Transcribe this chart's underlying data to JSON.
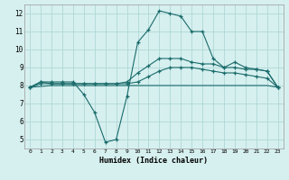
{
  "xlabel": "Humidex (Indice chaleur)",
  "background_color": "#d6f0ef",
  "grid_color": "#aed8d6",
  "line_color": "#1a6b6b",
  "xlim": [
    -0.5,
    23.5
  ],
  "ylim": [
    4.5,
    12.5
  ],
  "xticks": [
    0,
    1,
    2,
    3,
    4,
    5,
    6,
    7,
    8,
    9,
    10,
    11,
    12,
    13,
    14,
    15,
    16,
    17,
    18,
    19,
    20,
    21,
    22,
    23
  ],
  "yticks": [
    5,
    6,
    7,
    8,
    9,
    10,
    11,
    12
  ],
  "lines": [
    {
      "x": [
        0,
        1,
        2,
        3,
        4,
        5,
        6,
        7,
        8,
        9,
        10,
        11,
        12,
        13,
        14,
        15,
        16,
        17,
        18,
        19,
        20,
        21,
        22,
        23
      ],
      "y": [
        7.9,
        8.2,
        8.2,
        8.2,
        8.2,
        7.5,
        6.5,
        4.85,
        5.0,
        7.4,
        10.4,
        11.1,
        12.15,
        12.0,
        11.85,
        11.0,
        11.0,
        9.5,
        9.0,
        9.3,
        9.0,
        8.9,
        8.8,
        7.9
      ],
      "marker": "+"
    },
    {
      "x": [
        0,
        1,
        2,
        3,
        4,
        5,
        6,
        7,
        8,
        9,
        10,
        11,
        12,
        13,
        14,
        15,
        16,
        17,
        18,
        19,
        20,
        21,
        22,
        23
      ],
      "y": [
        7.9,
        8.2,
        8.1,
        8.1,
        8.1,
        8.1,
        8.1,
        8.1,
        8.1,
        8.2,
        8.7,
        9.1,
        9.5,
        9.5,
        9.5,
        9.3,
        9.2,
        9.2,
        9.0,
        9.0,
        8.9,
        8.9,
        8.8,
        7.9
      ],
      "marker": "+"
    },
    {
      "x": [
        0,
        1,
        2,
        3,
        4,
        5,
        6,
        7,
        8,
        9,
        10,
        11,
        12,
        13,
        14,
        15,
        16,
        17,
        18,
        19,
        20,
        21,
        22,
        23
      ],
      "y": [
        7.9,
        8.1,
        8.1,
        8.1,
        8.1,
        8.1,
        8.1,
        8.1,
        8.1,
        8.1,
        8.2,
        8.5,
        8.8,
        9.0,
        9.0,
        9.0,
        8.9,
        8.8,
        8.7,
        8.7,
        8.6,
        8.5,
        8.4,
        7.9
      ],
      "marker": "+"
    },
    {
      "x": [
        0,
        1,
        2,
        3,
        4,
        5,
        6,
        7,
        8,
        9,
        10,
        11,
        12,
        13,
        14,
        15,
        16,
        17,
        18,
        19,
        20,
        21,
        22,
        23
      ],
      "y": [
        7.9,
        7.95,
        8.0,
        8.0,
        8.0,
        8.0,
        8.0,
        8.0,
        8.0,
        8.0,
        8.0,
        8.0,
        8.0,
        8.0,
        8.0,
        8.0,
        8.0,
        8.0,
        8.0,
        8.0,
        8.0,
        8.0,
        8.0,
        7.9
      ],
      "marker": null
    }
  ]
}
